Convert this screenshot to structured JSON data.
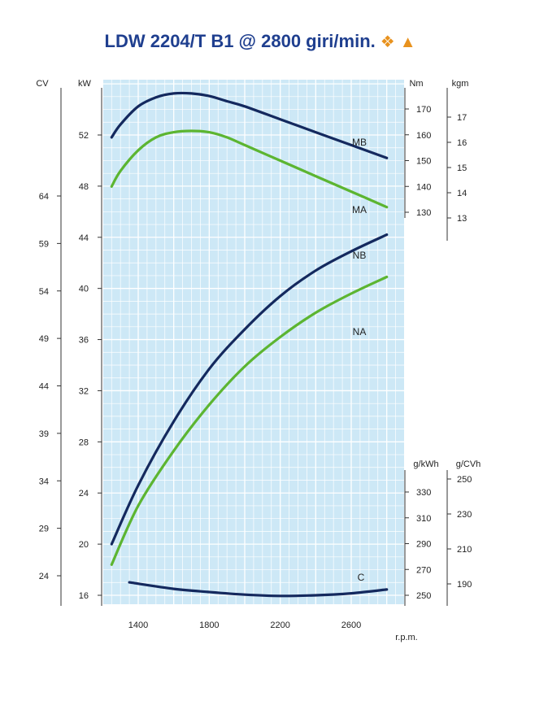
{
  "chart_data": {
    "type": "line",
    "title": "LDW 2204/T B1 @ 2800 giri/min.",
    "title_symbols": [
      "❖",
      "▲"
    ],
    "xlabel": "r.p.m.",
    "x_ticks": [
      1400,
      1800,
      2200,
      2600
    ],
    "xlim": [
      1200,
      2900
    ],
    "grid": true,
    "background_color": "#cde8f6",
    "axes": {
      "kw": {
        "unit": "kW",
        "ticks": [
          16,
          20,
          24,
          28,
          32,
          36,
          40,
          44,
          48,
          52
        ]
      },
      "cv": {
        "unit": "CV",
        "ticks": [
          24,
          29,
          34,
          39,
          44,
          49,
          54,
          59,
          64
        ]
      },
      "nm": {
        "unit": "Nm",
        "ticks": [
          130,
          140,
          150,
          160,
          170
        ]
      },
      "kgm": {
        "unit": "kgm",
        "ticks": [
          13,
          14,
          15,
          16,
          17
        ]
      },
      "gkwh": {
        "unit": "g/kWh",
        "ticks": [
          250,
          270,
          290,
          310,
          330
        ]
      },
      "gcvh": {
        "unit": "g/CVh",
        "ticks": [
          190,
          210,
          230,
          250
        ]
      }
    },
    "series": [
      {
        "name": "MB",
        "axis": "nm",
        "color": "#14295e",
        "x": [
          1250,
          1300,
          1400,
          1500,
          1600,
          1700,
          1800,
          1900,
          2000,
          2200,
          2400,
          2600,
          2800
        ],
        "y": [
          159,
          164,
          171,
          174.5,
          176,
          176,
          175,
          173,
          171,
          166,
          161,
          156,
          151
        ]
      },
      {
        "name": "MA",
        "axis": "nm",
        "color": "#5cb531",
        "x": [
          1250,
          1300,
          1400,
          1500,
          1600,
          1700,
          1800,
          1900,
          2000,
          2200,
          2400,
          2600,
          2800
        ],
        "y": [
          140,
          146,
          154,
          159,
          161,
          161.5,
          161,
          159,
          156,
          150,
          144,
          138,
          132
        ]
      },
      {
        "name": "NB",
        "axis": "kw",
        "color": "#14295e",
        "x": [
          1250,
          1400,
          1600,
          1800,
          2000,
          2200,
          2400,
          2600,
          2800
        ],
        "y": [
          20,
          24.6,
          29.6,
          33.7,
          36.8,
          39.4,
          41.4,
          42.9,
          44.2
        ]
      },
      {
        "name": "NA",
        "axis": "kw",
        "color": "#5cb531",
        "x": [
          1250,
          1400,
          1600,
          1800,
          2000,
          2200,
          2400,
          2600,
          2800
        ],
        "y": [
          18.4,
          23.0,
          27.3,
          30.9,
          33.9,
          36.2,
          38.1,
          39.6,
          40.9
        ]
      },
      {
        "name": "C",
        "axis": "gkwh",
        "color": "#14295e",
        "x": [
          1350,
          1600,
          1800,
          2000,
          2200,
          2400,
          2600,
          2800
        ],
        "y": [
          260,
          255,
          252.5,
          250.5,
          249.5,
          250,
          251.5,
          254.5
        ]
      }
    ]
  }
}
